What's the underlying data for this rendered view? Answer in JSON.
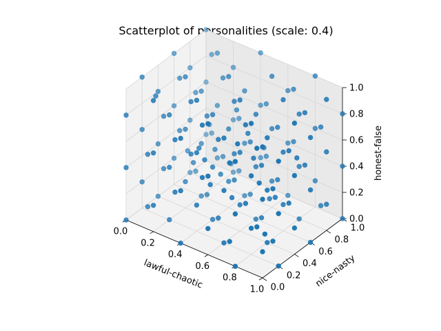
{
  "chart_data": {
    "type": "scatter",
    "title": "Scatterplot of personalities (scale: 0.4)",
    "xlabel": "lawful-chaotic",
    "ylabel": "nice-nasty",
    "zlabel": "honest-false",
    "xlim": [
      0,
      1
    ],
    "ylim": [
      0,
      1
    ],
    "zlim": [
      0,
      1
    ],
    "x_ticks": [
      "0.0",
      "0.2",
      "0.4",
      "0.6",
      "0.8",
      "1.0"
    ],
    "y_ticks": [
      "0.0",
      "0.2",
      "0.4",
      "0.6",
      "0.8",
      "1.0"
    ],
    "z_ticks": [
      "0.0",
      "0.2",
      "0.4",
      "0.6",
      "0.8",
      "1.0"
    ],
    "grid": true,
    "color": "#1f77b4",
    "points": [
      [
        0.0,
        0.0,
        0.0
      ],
      [
        0.0,
        0.0,
        0.4
      ],
      [
        0.0,
        0.0,
        0.8
      ],
      [
        0.0,
        0.2,
        0.2
      ],
      [
        0.0,
        0.2,
        0.6
      ],
      [
        0.0,
        0.2,
        1.0
      ],
      [
        0.0,
        0.4,
        0.0
      ],
      [
        0.0,
        0.4,
        0.4
      ],
      [
        0.0,
        0.4,
        0.8
      ],
      [
        0.0,
        0.6,
        0.2
      ],
      [
        0.0,
        0.6,
        0.6
      ],
      [
        0.0,
        0.6,
        1.0
      ],
      [
        0.0,
        0.8,
        0.0
      ],
      [
        0.0,
        0.8,
        0.4
      ],
      [
        0.0,
        0.8,
        0.8
      ],
      [
        0.0,
        1.0,
        0.2
      ],
      [
        0.0,
        1.0,
        0.6
      ],
      [
        0.0,
        1.0,
        1.0
      ],
      [
        0.2,
        0.0,
        0.2
      ],
      [
        0.2,
        0.0,
        0.6
      ],
      [
        0.2,
        0.0,
        1.0
      ],
      [
        0.2,
        0.2,
        0.0
      ],
      [
        0.2,
        0.2,
        0.4
      ],
      [
        0.2,
        0.2,
        0.8
      ],
      [
        0.2,
        0.4,
        0.2
      ],
      [
        0.2,
        0.4,
        0.6
      ],
      [
        0.2,
        0.4,
        1.0
      ],
      [
        0.2,
        0.6,
        0.0
      ],
      [
        0.2,
        0.6,
        0.4
      ],
      [
        0.2,
        0.6,
        0.8
      ],
      [
        0.2,
        0.8,
        0.2
      ],
      [
        0.2,
        0.8,
        0.6
      ],
      [
        0.2,
        0.8,
        1.0
      ],
      [
        0.2,
        1.0,
        0.0
      ],
      [
        0.2,
        1.0,
        0.4
      ],
      [
        0.2,
        1.0,
        0.8
      ],
      [
        0.4,
        0.0,
        0.0
      ],
      [
        0.4,
        0.0,
        0.4
      ],
      [
        0.4,
        0.0,
        0.8
      ],
      [
        0.4,
        0.2,
        0.2
      ],
      [
        0.4,
        0.2,
        0.6
      ],
      [
        0.4,
        0.2,
        1.0
      ],
      [
        0.4,
        0.4,
        0.0
      ],
      [
        0.4,
        0.4,
        0.4
      ],
      [
        0.4,
        0.4,
        0.8
      ],
      [
        0.4,
        0.6,
        0.2
      ],
      [
        0.4,
        0.6,
        0.6
      ],
      [
        0.4,
        0.6,
        1.0
      ],
      [
        0.4,
        0.8,
        0.0
      ],
      [
        0.4,
        0.8,
        0.4
      ],
      [
        0.4,
        0.8,
        0.8
      ],
      [
        0.4,
        1.0,
        0.2
      ],
      [
        0.4,
        1.0,
        0.6
      ],
      [
        0.4,
        1.0,
        1.0
      ],
      [
        0.6,
        0.0,
        0.2
      ],
      [
        0.6,
        0.0,
        0.6
      ],
      [
        0.6,
        0.0,
        1.0
      ],
      [
        0.6,
        0.2,
        0.0
      ],
      [
        0.6,
        0.2,
        0.4
      ],
      [
        0.6,
        0.2,
        0.8
      ],
      [
        0.6,
        0.4,
        0.2
      ],
      [
        0.6,
        0.4,
        0.6
      ],
      [
        0.6,
        0.4,
        1.0
      ],
      [
        0.6,
        0.6,
        0.0
      ],
      [
        0.6,
        0.6,
        0.4
      ],
      [
        0.6,
        0.6,
        0.8
      ],
      [
        0.6,
        0.8,
        0.2
      ],
      [
        0.6,
        0.8,
        0.6
      ],
      [
        0.6,
        0.8,
        1.0
      ],
      [
        0.6,
        1.0,
        0.0
      ],
      [
        0.6,
        1.0,
        0.4
      ],
      [
        0.6,
        1.0,
        0.8
      ],
      [
        0.8,
        0.0,
        0.0
      ],
      [
        0.8,
        0.0,
        0.4
      ],
      [
        0.8,
        0.0,
        0.8
      ],
      [
        0.8,
        0.2,
        0.2
      ],
      [
        0.8,
        0.2,
        0.6
      ],
      [
        0.8,
        0.2,
        1.0
      ],
      [
        0.8,
        0.4,
        0.0
      ],
      [
        0.8,
        0.4,
        0.4
      ],
      [
        0.8,
        0.4,
        0.8
      ],
      [
        0.8,
        0.6,
        0.2
      ],
      [
        0.8,
        0.6,
        0.6
      ],
      [
        0.8,
        0.6,
        1.0
      ],
      [
        0.8,
        0.8,
        0.0
      ],
      [
        0.8,
        0.8,
        0.4
      ],
      [
        0.8,
        0.8,
        0.8
      ],
      [
        0.8,
        1.0,
        0.2
      ],
      [
        0.8,
        1.0,
        0.6
      ],
      [
        0.8,
        1.0,
        1.0
      ],
      [
        1.0,
        0.0,
        0.2
      ],
      [
        1.0,
        0.0,
        0.6
      ],
      [
        1.0,
        0.0,
        1.0
      ],
      [
        1.0,
        0.2,
        0.0
      ],
      [
        1.0,
        0.2,
        0.4
      ],
      [
        1.0,
        0.2,
        0.8
      ],
      [
        1.0,
        0.4,
        0.2
      ],
      [
        1.0,
        0.4,
        0.6
      ],
      [
        1.0,
        0.4,
        1.0
      ],
      [
        1.0,
        0.6,
        0.0
      ],
      [
        1.0,
        0.6,
        0.4
      ],
      [
        1.0,
        0.6,
        0.8
      ],
      [
        1.0,
        0.8,
        0.2
      ],
      [
        1.0,
        0.8,
        0.6
      ],
      [
        1.0,
        0.8,
        1.0
      ],
      [
        1.0,
        1.0,
        0.0
      ],
      [
        1.0,
        1.0,
        0.4
      ],
      [
        1.0,
        1.0,
        0.8
      ],
      [
        0.1,
        0.1,
        0.1
      ],
      [
        0.1,
        0.3,
        0.3
      ],
      [
        0.1,
        0.5,
        0.5
      ],
      [
        0.1,
        0.7,
        0.7
      ],
      [
        0.1,
        0.9,
        0.9
      ],
      [
        0.1,
        0.1,
        0.5
      ],
      [
        0.1,
        0.3,
        0.7
      ],
      [
        0.1,
        0.5,
        0.9
      ],
      [
        0.1,
        0.7,
        0.1
      ],
      [
        0.1,
        0.9,
        0.3
      ],
      [
        0.1,
        0.2,
        0.9
      ],
      [
        0.1,
        0.6,
        0.3
      ],
      [
        0.3,
        0.1,
        0.3
      ],
      [
        0.3,
        0.3,
        0.5
      ],
      [
        0.3,
        0.5,
        0.7
      ],
      [
        0.3,
        0.7,
        0.9
      ],
      [
        0.3,
        0.9,
        0.1
      ],
      [
        0.3,
        0.1,
        0.7
      ],
      [
        0.3,
        0.3,
        0.9
      ],
      [
        0.3,
        0.5,
        0.1
      ],
      [
        0.3,
        0.7,
        0.3
      ],
      [
        0.3,
        0.9,
        0.5
      ],
      [
        0.3,
        0.4,
        0.5
      ],
      [
        0.3,
        0.8,
        0.2
      ],
      [
        0.5,
        0.1,
        0.5
      ],
      [
        0.5,
        0.3,
        0.7
      ],
      [
        0.5,
        0.5,
        0.9
      ],
      [
        0.5,
        0.7,
        0.1
      ],
      [
        0.5,
        0.9,
        0.3
      ],
      [
        0.5,
        0.1,
        0.9
      ],
      [
        0.5,
        0.3,
        0.1
      ],
      [
        0.5,
        0.5,
        0.3
      ],
      [
        0.5,
        0.7,
        0.5
      ],
      [
        0.5,
        0.9,
        0.7
      ],
      [
        0.5,
        0.5,
        0.5
      ],
      [
        0.5,
        0.2,
        0.4
      ],
      [
        0.7,
        0.1,
        0.7
      ],
      [
        0.7,
        0.3,
        0.9
      ],
      [
        0.7,
        0.5,
        0.1
      ],
      [
        0.7,
        0.7,
        0.3
      ],
      [
        0.7,
        0.9,
        0.5
      ],
      [
        0.7,
        0.1,
        0.1
      ],
      [
        0.7,
        0.3,
        0.3
      ],
      [
        0.7,
        0.5,
        0.5
      ],
      [
        0.7,
        0.7,
        0.7
      ],
      [
        0.7,
        0.9,
        0.9
      ],
      [
        0.7,
        0.4,
        0.6
      ],
      [
        0.7,
        0.6,
        0.2
      ],
      [
        0.9,
        0.1,
        0.9
      ],
      [
        0.9,
        0.3,
        0.1
      ],
      [
        0.9,
        0.5,
        0.3
      ],
      [
        0.9,
        0.7,
        0.5
      ],
      [
        0.9,
        0.9,
        0.7
      ],
      [
        0.9,
        0.1,
        0.3
      ],
      [
        0.9,
        0.3,
        0.5
      ],
      [
        0.9,
        0.5,
        0.7
      ],
      [
        0.9,
        0.7,
        0.9
      ],
      [
        0.9,
        0.9,
        0.1
      ],
      [
        0.9,
        0.2,
        0.2
      ],
      [
        0.9,
        0.6,
        0.6
      ],
      [
        0.2,
        0.5,
        0.3
      ],
      [
        0.4,
        0.3,
        0.5
      ],
      [
        0.6,
        0.5,
        0.7
      ],
      [
        0.8,
        0.3,
        0.5
      ],
      [
        0.2,
        0.7,
        0.5
      ],
      [
        0.4,
        0.5,
        0.3
      ],
      [
        0.6,
        0.3,
        0.3
      ],
      [
        0.8,
        0.5,
        0.3
      ],
      [
        0.4,
        0.7,
        0.7
      ],
      [
        0.6,
        0.7,
        0.5
      ],
      [
        0.3,
        0.6,
        0.4
      ],
      [
        0.7,
        0.2,
        0.8
      ]
    ]
  }
}
